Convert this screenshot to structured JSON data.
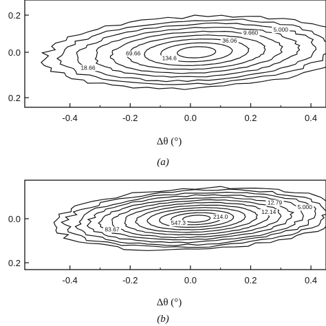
{
  "chart_data": [
    {
      "type": "contour",
      "xlabel": "Δθ (°)",
      "caption": "(a)",
      "x_ticks": [
        "-0.4",
        "-0.2",
        "0.0",
        "0.2",
        "0.4"
      ],
      "y_ticks": [
        "0.2",
        "0.0",
        "0.2"
      ],
      "xlim": [
        -0.55,
        0.45
      ],
      "contour_labels": [
        {
          "text": "5.000",
          "x": 0.3,
          "y": 0.065
        },
        {
          "text": "9.660",
          "x": 0.2,
          "y": 0.055
        },
        {
          "text": "36.06",
          "x": 0.13,
          "y": 0.03
        },
        {
          "text": "69.66",
          "x": -0.19,
          "y": -0.01
        },
        {
          "text": "134.6",
          "x": -0.07,
          "y": -0.025
        },
        {
          "text": "18.66",
          "x": -0.34,
          "y": -0.055
        }
      ]
    },
    {
      "type": "contour",
      "xlabel": "Δθ (°)",
      "caption": "(b)",
      "x_ticks": [
        "-0.4",
        "-0.2",
        "0.0",
        "0.2",
        "0.4"
      ],
      "y_ticks": [
        "0.0",
        "0.2"
      ],
      "xlim": [
        -0.55,
        0.45
      ],
      "contour_labels": [
        {
          "text": "12.79",
          "x": 0.28,
          "y": 0.045
        },
        {
          "text": "5.000",
          "x": 0.38,
          "y": 0.03
        },
        {
          "text": "12.14",
          "x": 0.26,
          "y": 0.015
        },
        {
          "text": "214.0",
          "x": 0.1,
          "y": 0.0
        },
        {
          "text": "547.3",
          "x": -0.04,
          "y": -0.02
        },
        {
          "text": "83.67",
          "x": -0.26,
          "y": -0.04
        }
      ]
    }
  ]
}
